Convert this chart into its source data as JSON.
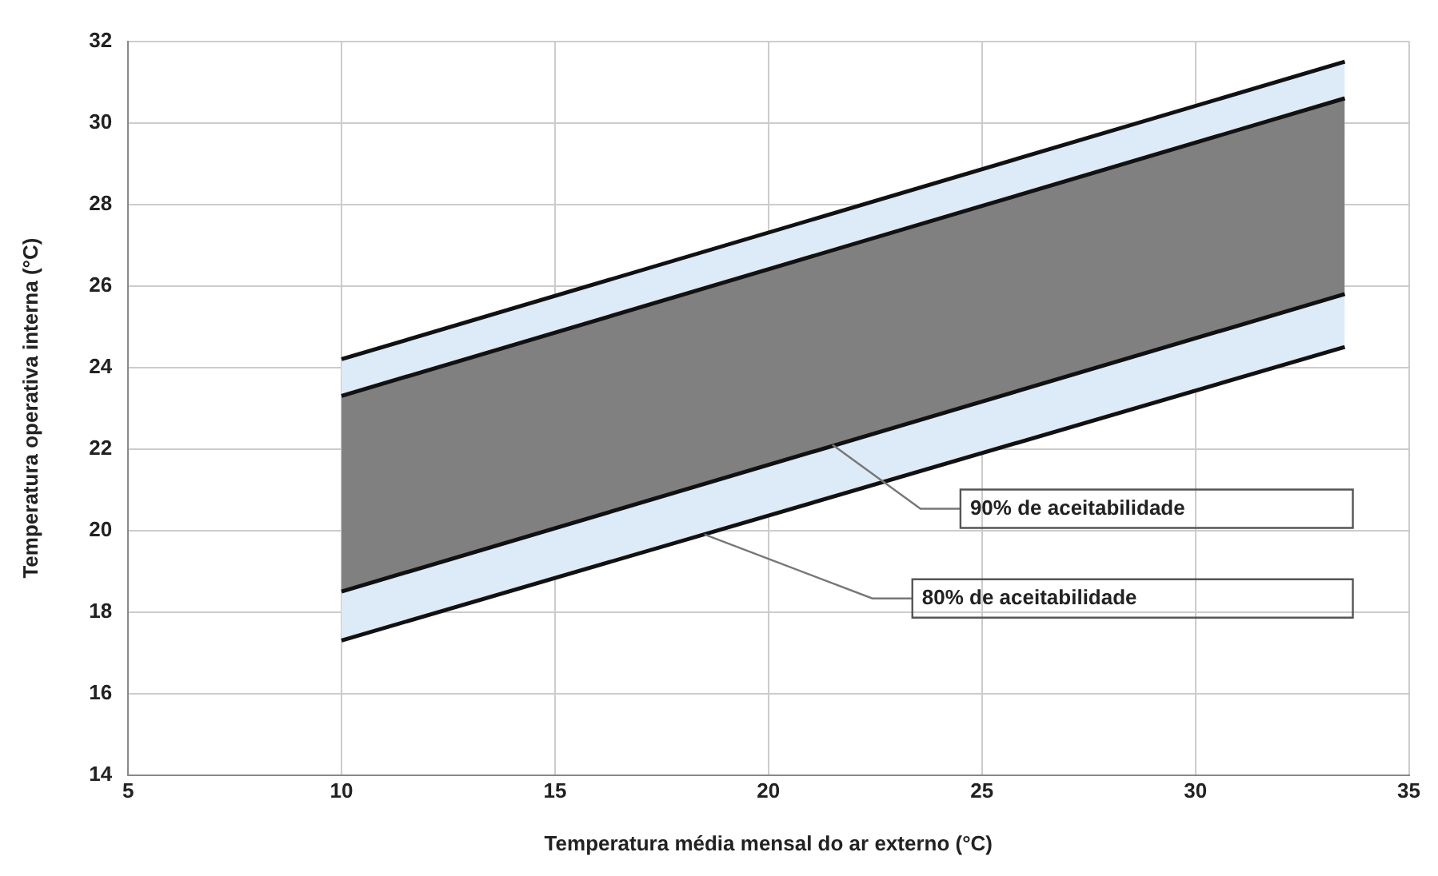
{
  "chart_data": {
    "type": "area",
    "xlabel": "Temperatura média mensal do ar externo (°C)",
    "ylabel": "Temperatura operativa interna (°C)",
    "x": [
      10,
      33.5
    ],
    "series": [
      {
        "color": "#ddeaf7",
        "values": [
          null,
          null
        ],
        "lower": [
          17.3,
          24.5
        ],
        "upper": [
          24.2,
          31.5
        ]
      },
      {
        "color": "#808080",
        "values": [
          null,
          null
        ],
        "lower": [
          18.5,
          25.8
        ],
        "upper": [
          23.3,
          30.6
        ]
      },
      {
        "type": "line",
        "color": "#111111",
        "values": [
          24.2,
          31.5
        ]
      },
      {
        "type": "line",
        "color": "#111111",
        "values": [
          23.3,
          30.6
        ]
      },
      {
        "type": "line",
        "color": "#111111",
        "values": [
          18.5,
          25.8
        ]
      },
      {
        "type": "line",
        "color": "#111111",
        "values": [
          17.3,
          24.5
        ]
      }
    ],
    "annotations": [
      {
        "text": "90% de aceitabilidade",
        "x": 21.5,
        "y": 22.1
      },
      {
        "text": "80% de aceitabilidade",
        "x": 18.5,
        "y": 19.9
      }
    ],
    "xlim": [
      5,
      35
    ],
    "xticks": [
      5,
      10,
      15,
      20,
      25,
      30,
      35
    ],
    "ylim": [
      14,
      32
    ],
    "yticks": [
      14,
      16,
      18,
      20,
      22,
      24,
      26,
      28,
      30,
      32
    ],
    "grid": true,
    "legend": false
  }
}
